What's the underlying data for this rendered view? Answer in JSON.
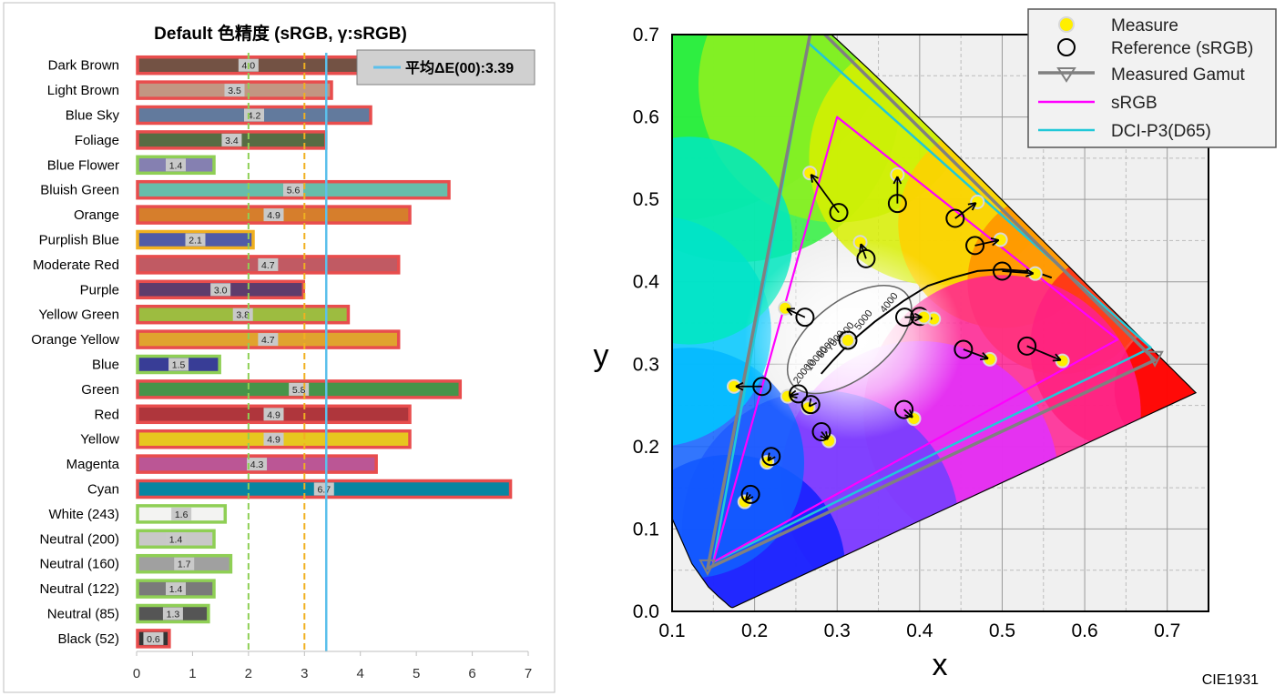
{
  "chart_data": [
    {
      "type": "bar",
      "orientation": "horizontal",
      "title": "Default 色精度 (sRGB, γ:sRGB)",
      "categories": [
        "Dark Brown",
        "Light Brown",
        "Blue Sky",
        "Foliage",
        "Blue Flower",
        "Bluish Green",
        "Orange",
        "Purplish Blue",
        "Moderate Red",
        "Purple",
        "Yellow Green",
        "Orange Yellow",
        "Blue",
        "Green",
        "Red",
        "Yellow",
        "Magenta",
        "Cyan",
        "White (243)",
        "Neutral (200)",
        "Neutral (160)",
        "Neutral (122)",
        "Neutral (85)",
        "Black (52)"
      ],
      "values": [
        4.0,
        3.5,
        4.2,
        3.4,
        1.4,
        5.6,
        4.9,
        2.1,
        4.7,
        3.0,
        3.8,
        4.7,
        1.5,
        5.8,
        4.9,
        4.9,
        4.3,
        6.7,
        1.6,
        1.4,
        1.7,
        1.4,
        1.3,
        0.6
      ],
      "value_labels": [
        "4.0",
        "3.5",
        "4.2",
        "3.4",
        "1.4",
        "5.6",
        "4.9",
        "2.1",
        "4.7",
        "3.0",
        "3.8",
        "4.7",
        "1.5",
        "5.8",
        "4.9",
        "4.9",
        "4.3",
        "6.7",
        "1.6",
        "1.4",
        "1.7",
        "1.4",
        "1.3",
        "0.6"
      ],
      "bar_colors": [
        "#735244",
        "#c29682",
        "#627a9d",
        "#576c43",
        "#8580b1",
        "#67bdaa",
        "#d67e2c",
        "#505ba6",
        "#c15a63",
        "#5e3c6c",
        "#9dbc40",
        "#e0a32e",
        "#383d96",
        "#469449",
        "#af363c",
        "#e7c71f",
        "#bb5695",
        "#0885a1",
        "#f3f3f2",
        "#c8c8c8",
        "#a0a0a0",
        "#7a7a7a",
        "#555555",
        "#343434"
      ],
      "border_colors": [
        "#e84d4d",
        "#e84d4d",
        "#e84d4d",
        "#e84d4d",
        "#8fcf55",
        "#e84d4d",
        "#e84d4d",
        "#f0b020",
        "#e84d4d",
        "#e84d4d",
        "#e84d4d",
        "#e84d4d",
        "#8fcf55",
        "#e84d4d",
        "#e84d4d",
        "#e84d4d",
        "#e84d4d",
        "#e84d4d",
        "#8fcf55",
        "#8fcf55",
        "#8fcf55",
        "#8fcf55",
        "#8fcf55",
        "#e84d4d"
      ],
      "xlim": [
        0,
        7
      ],
      "xticks": [
        "0",
        "1",
        "2",
        "3",
        "4",
        "5",
        "6",
        "7"
      ],
      "reference_lines": [
        {
          "value": 2,
          "color": "#8fcf55",
          "style": "dashed"
        },
        {
          "value": 3,
          "color": "#f0b020",
          "style": "dashed"
        },
        {
          "value": 3.39,
          "color": "#5bc0eb",
          "style": "solid"
        }
      ],
      "legend": {
        "label": "平均ΔE(00):3.39",
        "placement": "top-right"
      }
    },
    {
      "type": "scatter",
      "name": "CIE1931",
      "xlabel": "x",
      "ylabel": "y",
      "xlim": [
        0.1,
        0.75
      ],
      "ylim": [
        0.0,
        0.7
      ],
      "xticks": [
        "0.1",
        "0.2",
        "0.3",
        "0.4",
        "0.5",
        "0.6",
        "0.7"
      ],
      "yticks": [
        "0.0",
        "0.1",
        "0.2",
        "0.3",
        "0.4",
        "0.5",
        "0.6",
        "0.7"
      ],
      "grid": true,
      "legend": {
        "placement": "top-right",
        "entries": [
          "Measure",
          "Reference (sRGB)",
          "Measured Gamut",
          "sRGB",
          "DCI-P3(D65)"
        ]
      },
      "gamuts": {
        "srgb": {
          "color": "#ff00ff",
          "points": [
            [
              0.64,
              0.33
            ],
            [
              0.3,
              0.6
            ],
            [
              0.15,
              0.06
            ]
          ]
        },
        "dci_p3": {
          "color": "#20c8d8",
          "points": [
            [
              0.68,
              0.32
            ],
            [
              0.265,
              0.69
            ],
            [
              0.15,
              0.06
            ]
          ]
        },
        "measured": {
          "color": "#808080",
          "points": [
            [
              0.685,
              0.305
            ],
            [
              0.27,
              0.715
            ],
            [
              0.143,
              0.052
            ]
          ]
        }
      },
      "planckian_labels": [
        "4000",
        "5000",
        "6000",
        "7000",
        "8000",
        "10000",
        "20000"
      ],
      "pairs": [
        {
          "measure": [
            0.267,
            0.532
          ],
          "reference": [
            0.302,
            0.484
          ]
        },
        {
          "measure": [
            0.373,
            0.53
          ],
          "reference": [
            0.373,
            0.495
          ]
        },
        {
          "measure": [
            0.47,
            0.497
          ],
          "reference": [
            0.443,
            0.477
          ]
        },
        {
          "measure": [
            0.498,
            0.451
          ],
          "reference": [
            0.467,
            0.444
          ]
        },
        {
          "measure": [
            0.54,
            0.41
          ],
          "reference": [
            0.5,
            0.413
          ]
        },
        {
          "measure": [
            0.328,
            0.448
          ],
          "reference": [
            0.335,
            0.428
          ]
        },
        {
          "measure": [
            0.417,
            0.355
          ],
          "reference": [
            0.4,
            0.358
          ]
        },
        {
          "measure": [
            0.405,
            0.357
          ],
          "reference": [
            0.382,
            0.357
          ]
        },
        {
          "measure": [
            0.237,
            0.368
          ],
          "reference": [
            0.261,
            0.357
          ]
        },
        {
          "measure": [
            0.313,
            0.329
          ],
          "reference": [
            0.313,
            0.329
          ]
        },
        {
          "measure": [
            0.175,
            0.273
          ],
          "reference": [
            0.209,
            0.273
          ]
        },
        {
          "measure": [
            0.24,
            0.261
          ],
          "reference": [
            0.253,
            0.264
          ]
        },
        {
          "measure": [
            0.265,
            0.247
          ],
          "reference": [
            0.268,
            0.251
          ]
        },
        {
          "measure": [
            0.485,
            0.306
          ],
          "reference": [
            0.453,
            0.318
          ]
        },
        {
          "measure": [
            0.573,
            0.304
          ],
          "reference": [
            0.53,
            0.322
          ]
        },
        {
          "measure": [
            0.393,
            0.234
          ],
          "reference": [
            0.381,
            0.245
          ]
        },
        {
          "measure": [
            0.29,
            0.207
          ],
          "reference": [
            0.281,
            0.218
          ]
        },
        {
          "measure": [
            0.215,
            0.181
          ],
          "reference": [
            0.22,
            0.188
          ]
        },
        {
          "measure": [
            0.188,
            0.133
          ],
          "reference": [
            0.195,
            0.142
          ]
        }
      ]
    }
  ]
}
